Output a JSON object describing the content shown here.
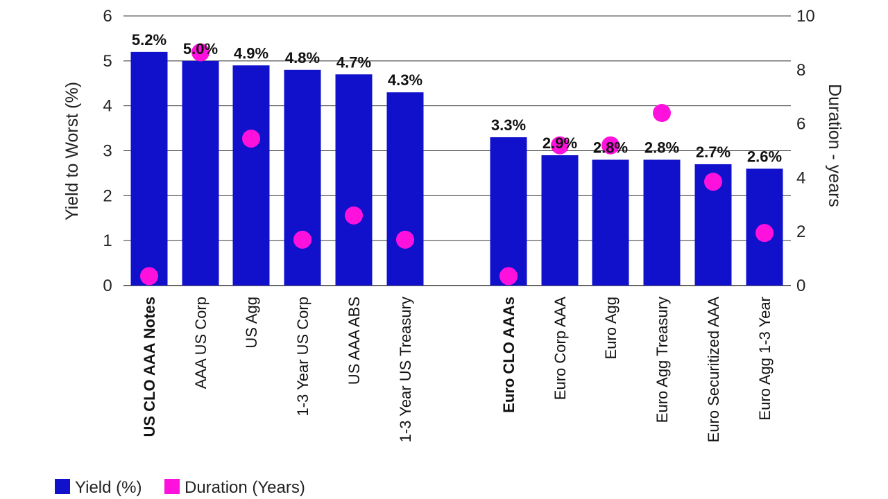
{
  "colors": {
    "yield": "#1111cc",
    "duration": "#ff11dd",
    "grid": "#333333"
  },
  "chart_data": {
    "type": "bar",
    "categories": [
      "US CLO AAA Notes",
      "AAA US Corp",
      "US Agg",
      "1-3 Year US Corp",
      "US AAA ABS",
      "1-3 Year US Treasury",
      "Euro CLO AAAs",
      "Euro Corp AAA",
      "Euro Agg",
      "Euro Agg Treasury",
      "Euro Securitized  AAA",
      "Euro Agg 1-3 Year"
    ],
    "bold_categories": [
      "US CLO AAA Notes",
      "Euro CLO AAAs"
    ],
    "series": [
      {
        "name": "Yield (%)",
        "type": "bar",
        "axis": "left",
        "values": [
          5.2,
          5.0,
          4.9,
          4.8,
          4.7,
          4.3,
          3.3,
          2.9,
          2.8,
          2.8,
          2.7,
          2.6
        ],
        "labels": [
          "5.2%",
          "5.0%",
          "4.9%",
          "4.8%",
          "4.7%",
          "4.3%",
          "3.3%",
          "2.9%",
          "2.8%",
          "2.8%",
          "2.7%",
          "2.6%"
        ]
      },
      {
        "name": "Duration (Years)",
        "type": "scatter",
        "axis": "right",
        "values": [
          0.35,
          8.65,
          5.45,
          1.7,
          2.6,
          1.7,
          0.35,
          5.2,
          5.2,
          6.4,
          3.85,
          1.95
        ]
      }
    ],
    "ylabel": "Yield to Worst (%)",
    "y2label": "Duration - years",
    "ylim": [
      0,
      6
    ],
    "y2lim": [
      0,
      10
    ],
    "yticks": [
      "0",
      "1",
      "2",
      "3",
      "4",
      "5",
      "6"
    ],
    "y2ticks": [
      "0",
      "2",
      "4",
      "6",
      "8",
      "10"
    ],
    "grid": true,
    "legend_position": "bottom-left"
  }
}
